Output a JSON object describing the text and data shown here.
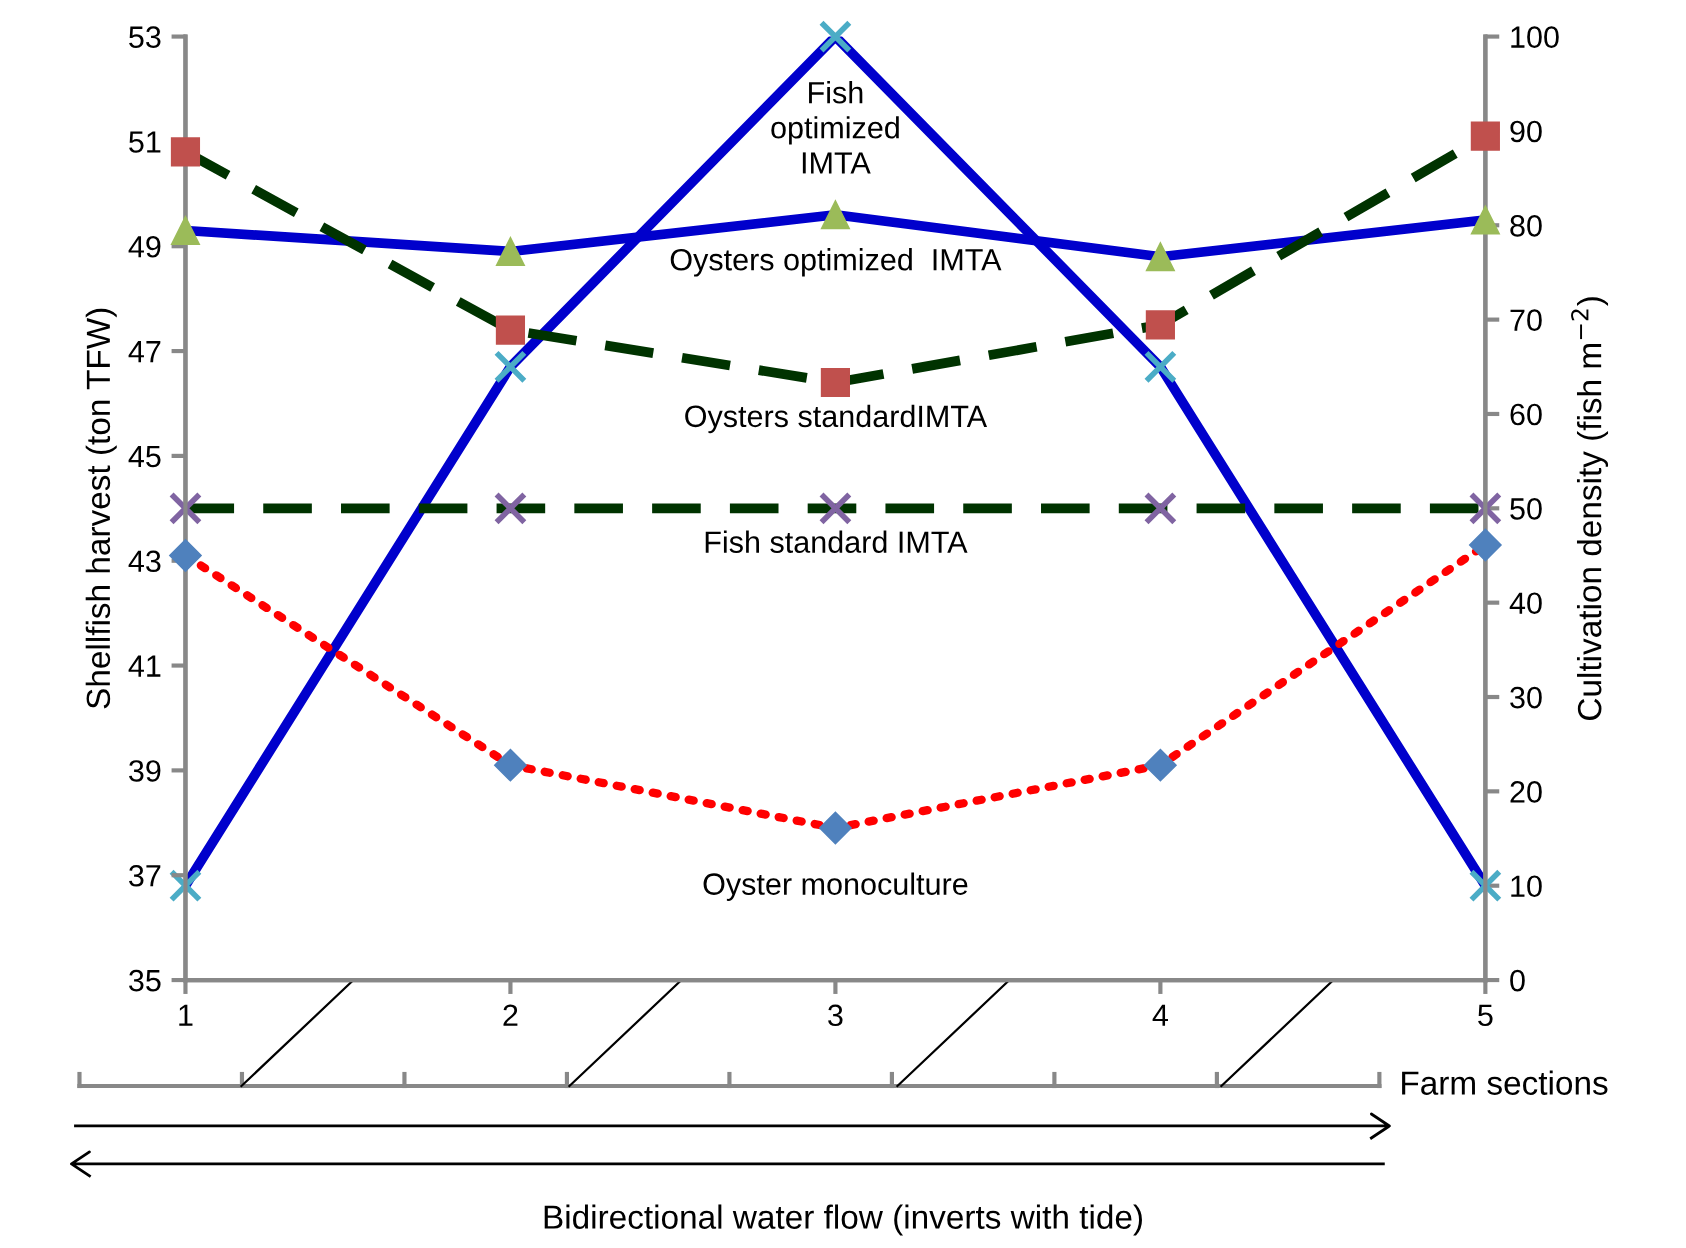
{
  "chart_data": {
    "type": "line",
    "x": [
      1,
      2,
      3,
      4,
      5
    ],
    "xlim": [
      1,
      5
    ],
    "xticks": [
      1,
      2,
      3,
      4,
      5
    ],
    "ylim": [
      35,
      53
    ],
    "yticks": [
      35,
      37,
      39,
      41,
      43,
      45,
      47,
      49,
      51,
      53
    ],
    "y2lim": [
      0,
      100
    ],
    "y2ticks": [
      0,
      10,
      20,
      30,
      40,
      50,
      60,
      70,
      80,
      90,
      100
    ],
    "ylabel": "Shellfish harvest (ton TFW)",
    "y2label": "Cultivation density (fish m$^{−2}$)",
    "grid": false,
    "series": [
      {
        "name": "Fish\noptimized\nIMTA",
        "axis": "y2",
        "color": "#0000cc",
        "colors": [
          "#4bacc6",
          "#4bacc6",
          "#4bacc6",
          "#4bacc6",
          "#4bacc6"
        ],
        "marker": "cross",
        "line_style": "solid",
        "values": [
          10,
          65,
          100,
          65,
          10
        ]
      },
      {
        "name": "Oysters optimized  IMTA",
        "axis": "y",
        "color": "#0000cc",
        "colors": [
          "#9bbb59",
          "#9bbb59",
          "#9bbb59",
          "#9bbb59",
          "#9bbb59"
        ],
        "marker": "triangle",
        "line_style": "solid",
        "values": [
          49.3,
          48.9,
          49.6,
          48.8,
          49.5
        ]
      },
      {
        "name": "Oysters standardIMTA",
        "axis": "y",
        "color": "#003300",
        "colors": [
          "#c0504d",
          "#c0504d",
          "#c0504d",
          "#c0504d",
          "#c0504d"
        ],
        "marker": "square",
        "line_style": "dashed",
        "values": [
          50.8,
          47.4,
          46.4,
          47.5,
          51.1
        ]
      },
      {
        "name": "Fish standard IMTA",
        "axis": "y2",
        "color": "#003300",
        "colors": [
          "#8064a2",
          "#8064a2",
          "#8064a2",
          "#8064a2",
          "#8064a2"
        ],
        "marker": "cross",
        "line_style": "dashed",
        "values": [
          50,
          50,
          50,
          50,
          50
        ]
      },
      {
        "name": "Oyster monoculture",
        "axis": "y",
        "color": "#ff0000",
        "colors": [
          "#4f81bd",
          "#4f81bd",
          "#4f81bd",
          "#4f81bd",
          "#4f81bd"
        ],
        "marker": "diamond",
        "line_style": "dotted",
        "values": [
          43.1,
          39.1,
          37.9,
          39.1,
          43.3
        ]
      }
    ],
    "annotations": [
      "Farm sections",
      "Bidirectional water flow (inverts with tide)"
    ]
  }
}
